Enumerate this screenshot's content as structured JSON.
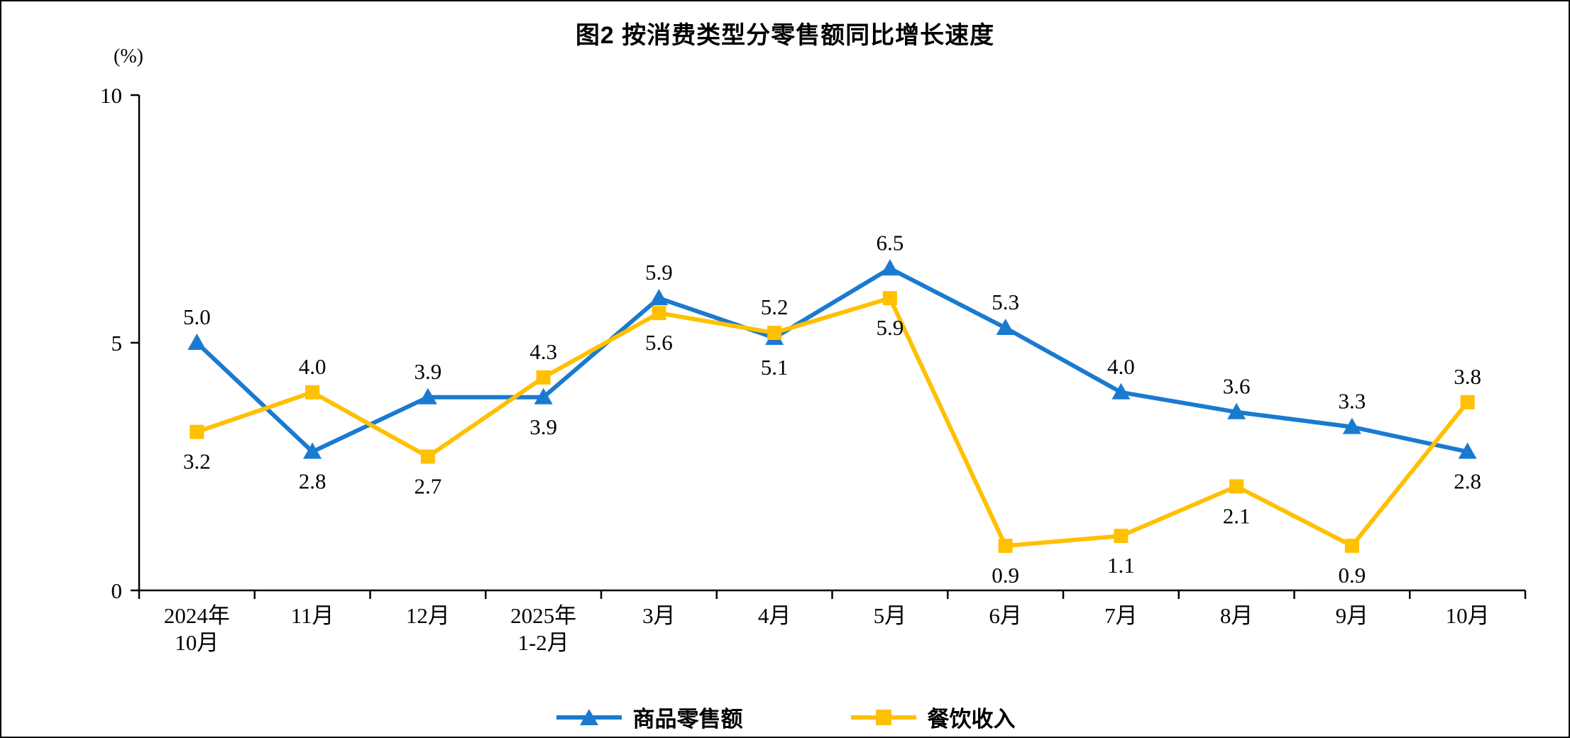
{
  "chart_data": {
    "type": "line",
    "title": "图2 按消费类型分零售额同比增长速度",
    "unit_label": "(%)",
    "categories": [
      "2024年\n10月",
      "11月",
      "12月",
      "2025年\n1-2月",
      "3月",
      "4月",
      "5月",
      "6月",
      "7月",
      "8月",
      "9月",
      "10月"
    ],
    "ylim": [
      0,
      10
    ],
    "yticks": [
      0,
      5,
      10
    ],
    "ytick_labels": [
      "0",
      "5",
      "10"
    ],
    "grid": false,
    "legend_position": "bottom",
    "series": [
      {
        "name": "商品零售额",
        "color": "#1A7AD0",
        "marker": "triangle",
        "values": [
          5.0,
          2.8,
          3.9,
          3.9,
          5.9,
          5.1,
          6.5,
          5.3,
          4.0,
          3.6,
          3.3,
          2.8
        ],
        "label_positions": [
          "above",
          "below",
          "above",
          "below",
          "above",
          "below",
          "above",
          "above",
          "above",
          "above",
          "above",
          "below"
        ]
      },
      {
        "name": "餐饮收入",
        "color": "#FFC000",
        "marker": "square",
        "values": [
          3.2,
          4.0,
          2.7,
          4.3,
          5.6,
          5.2,
          5.9,
          0.9,
          1.1,
          2.1,
          0.9,
          3.8
        ],
        "label_positions": [
          "below",
          "above",
          "below",
          "above",
          "below",
          "above",
          "below",
          "below",
          "below",
          "below",
          "below",
          "above"
        ]
      }
    ]
  }
}
